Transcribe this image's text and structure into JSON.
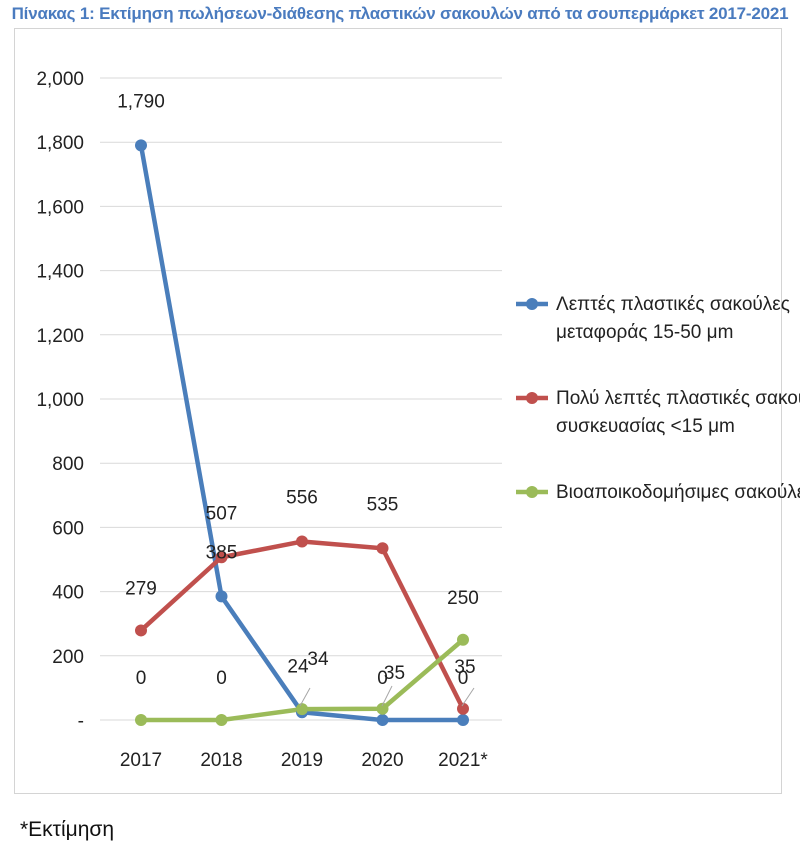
{
  "title": "Πίνακας 1: Εκτίμηση πωλήσεων-διάθεσης πλαστικών σακουλών από τα σουπερμάρκετ 2017-2021",
  "footnote": "*Εκτίμηση",
  "chart_data": {
    "type": "line",
    "categories": [
      "2017",
      "2018",
      "2019",
      "2020",
      "2021*"
    ],
    "ylim": [
      0,
      2000
    ],
    "yticks": [
      0,
      200,
      400,
      600,
      800,
      1000,
      1200,
      1400,
      1600,
      1800,
      2000
    ],
    "ytick_labels": [
      "-",
      "200",
      "400",
      "600",
      "800",
      "1,000",
      "1,200",
      "1,400",
      "1,600",
      "1,800",
      "2,000"
    ],
    "grid": true,
    "legend_position": "right",
    "series": [
      {
        "name_lines": [
          "Λεπτές πλαστικές σακούλες",
          "μεταφοράς 15-50 μm"
        ],
        "color": "#4a7ebb",
        "values": [
          1790,
          385,
          24,
          0,
          0
        ],
        "labels": [
          "1,790",
          "385",
          "24",
          "0",
          "0"
        ]
      },
      {
        "name_lines": [
          "Πολύ λεπτές πλαστικές σακούλες",
          "συσκευασίας <15 μm"
        ],
        "color": "#c0504d",
        "values": [
          279,
          507,
          556,
          535,
          35
        ],
        "labels": [
          "279",
          "507",
          "556",
          "535",
          "35"
        ]
      },
      {
        "name_lines": [
          "Βιοαποικοδομήσιμες σακούλες"
        ],
        "color": "#9bbb59",
        "values": [
          0,
          0,
          34,
          35,
          250
        ],
        "labels": [
          "0",
          "0",
          "34",
          "35",
          "250"
        ]
      }
    ]
  }
}
